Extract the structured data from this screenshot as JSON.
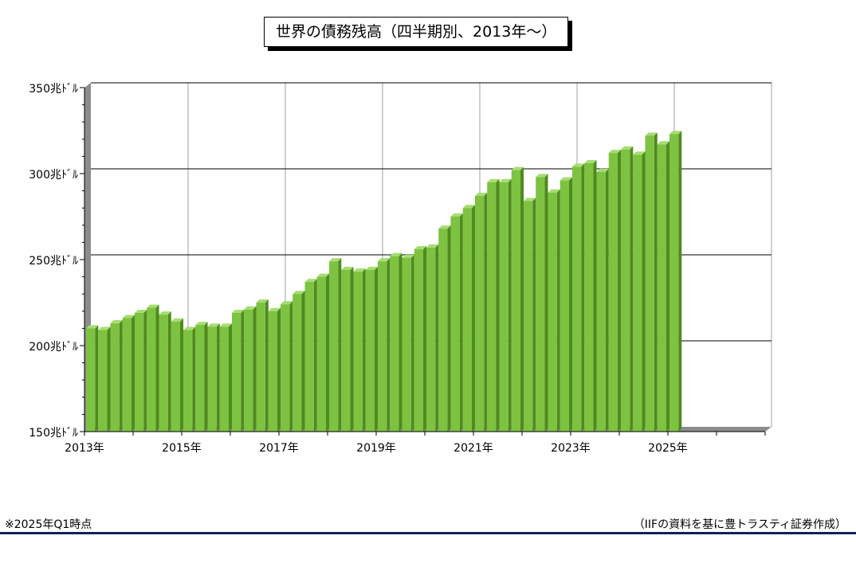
{
  "title": "世界の債務残高（四半期別、2013年～）",
  "footnote_left": "※2025年Q1時点",
  "footnote_right": "（IIFの資料を基に豊トラスティ証券作成）",
  "chart_data": {
    "type": "bar",
    "title": "世界の債務残高（四半期別、2013年～）",
    "xlabel": "",
    "ylabel": "",
    "ylim": [
      150,
      350
    ],
    "yticks": [
      150,
      200,
      250,
      300,
      350
    ],
    "ytick_labels": [
      "150兆ﾄﾞﾙ",
      "200兆ﾄﾞﾙ",
      "250兆ﾄﾞﾙ",
      "300兆ﾄﾞﾙ",
      "350兆ﾄﾞﾙ"
    ],
    "xtick_labels": [
      "2013年",
      "2015年",
      "2017年",
      "2019年",
      "2021年",
      "2023年",
      "2025年"
    ],
    "grid": true,
    "legend": "none",
    "bar_color": "#7dc241",
    "categories": [
      "2013Q1",
      "2013Q2",
      "2013Q3",
      "2013Q4",
      "2014Q1",
      "2014Q2",
      "2014Q3",
      "2014Q4",
      "2015Q1",
      "2015Q2",
      "2015Q3",
      "2015Q4",
      "2016Q1",
      "2016Q2",
      "2016Q3",
      "2016Q4",
      "2017Q1",
      "2017Q2",
      "2017Q3",
      "2017Q4",
      "2018Q1",
      "2018Q2",
      "2018Q3",
      "2018Q4",
      "2019Q1",
      "2019Q2",
      "2019Q3",
      "2019Q4",
      "2020Q1",
      "2020Q2",
      "2020Q3",
      "2020Q4",
      "2021Q1",
      "2021Q2",
      "2021Q3",
      "2021Q4",
      "2022Q1",
      "2022Q2",
      "2022Q3",
      "2022Q4",
      "2023Q1",
      "2023Q2",
      "2023Q3",
      "2023Q4",
      "2024Q1",
      "2024Q2",
      "2024Q3",
      "2024Q4",
      "2025Q1"
    ],
    "values": [
      210,
      209,
      213,
      216,
      219,
      222,
      218,
      214,
      209,
      212,
      211,
      211,
      219,
      221,
      225,
      220,
      224,
      230,
      237,
      240,
      249,
      244,
      243,
      244,
      249,
      252,
      251,
      256,
      257,
      268,
      275,
      280,
      287,
      295,
      295,
      302,
      284,
      298,
      289,
      296,
      304,
      306,
      301,
      312,
      314,
      311,
      322,
      317,
      323
    ]
  }
}
